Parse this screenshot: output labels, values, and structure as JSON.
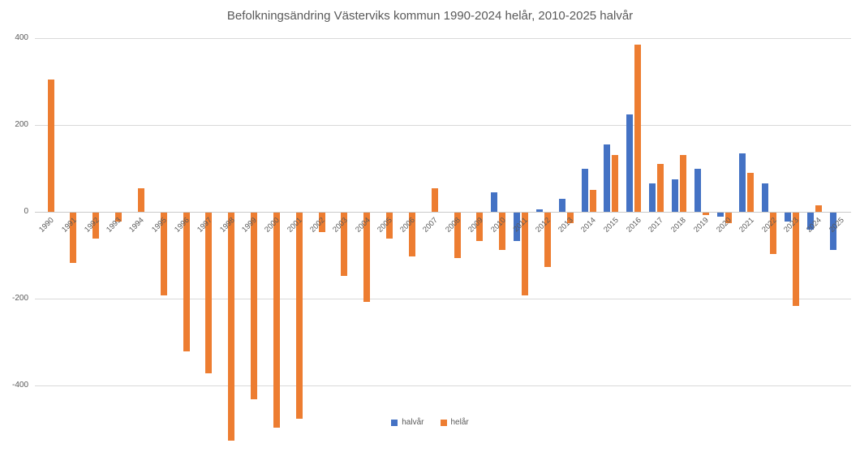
{
  "title": "Befolkningsändring Västerviks kommun 1990-2024 helår, 2010-2025 halvår",
  "colors": {
    "halvar_blue": "#4472C4",
    "helar_orange": "#ED7D31",
    "gridline": "#D9D9D9",
    "text_gray": "#595959"
  },
  "legend": {
    "items": [
      {
        "label": "halvår",
        "color": "#4472C4"
      },
      {
        "label": "helår",
        "color": "#ED7D31"
      }
    ]
  },
  "y_axis": {
    "ticks": [
      {
        "label": "400",
        "value": 400
      },
      {
        "label": "200",
        "value": 200
      },
      {
        "label": "0",
        "value": 0
      },
      {
        "label": "-200",
        "value": -200
      },
      {
        "label": "-400",
        "value": -400
      }
    ],
    "min": -400,
    "max": 400
  },
  "chart_data": {
    "type": "bar",
    "title": "Befolkningsändring Västerviks kommun 1990-2024 helår, 2010-2025 halvår",
    "xlabel": "",
    "ylabel": "",
    "ylim": [
      -400,
      400
    ],
    "grid": true,
    "legend_position": "bottom",
    "categories": [
      "1990",
      "1991",
      "1992",
      "1993",
      "1994",
      "1995",
      "1996",
      "1997",
      "1998",
      "1999",
      "2000",
      "2001",
      "2002",
      "2003",
      "2004",
      "2005",
      "2006",
      "2007",
      "2008",
      "2009",
      "2010",
      "2011",
      "2012",
      "2013",
      "2014",
      "2015",
      "2016",
      "2017",
      "2018",
      "2019",
      "2020",
      "2021",
      "2022",
      "2023",
      "2024",
      "2025"
    ],
    "series": [
      {
        "name": "halvår",
        "color": "#4472C4",
        "values": [
          null,
          null,
          null,
          null,
          null,
          null,
          null,
          null,
          null,
          null,
          null,
          null,
          null,
          null,
          null,
          null,
          null,
          null,
          null,
          null,
          45,
          -65,
          5,
          30,
          100,
          155,
          225,
          65,
          75,
          100,
          -10,
          135,
          65,
          -20,
          -40,
          -85
        ]
      },
      {
        "name": "helår",
        "color": "#ED7D31",
        "values": [
          305,
          -115,
          -60,
          -20,
          55,
          -190,
          -320,
          -370,
          -525,
          -430,
          -495,
          -475,
          -45,
          -145,
          -205,
          -60,
          -100,
          55,
          -105,
          -65,
          -85,
          -190,
          -125,
          -25,
          50,
          130,
          385,
          110,
          130,
          -5,
          -25,
          90,
          -95,
          -215,
          15,
          null
        ]
      }
    ]
  }
}
